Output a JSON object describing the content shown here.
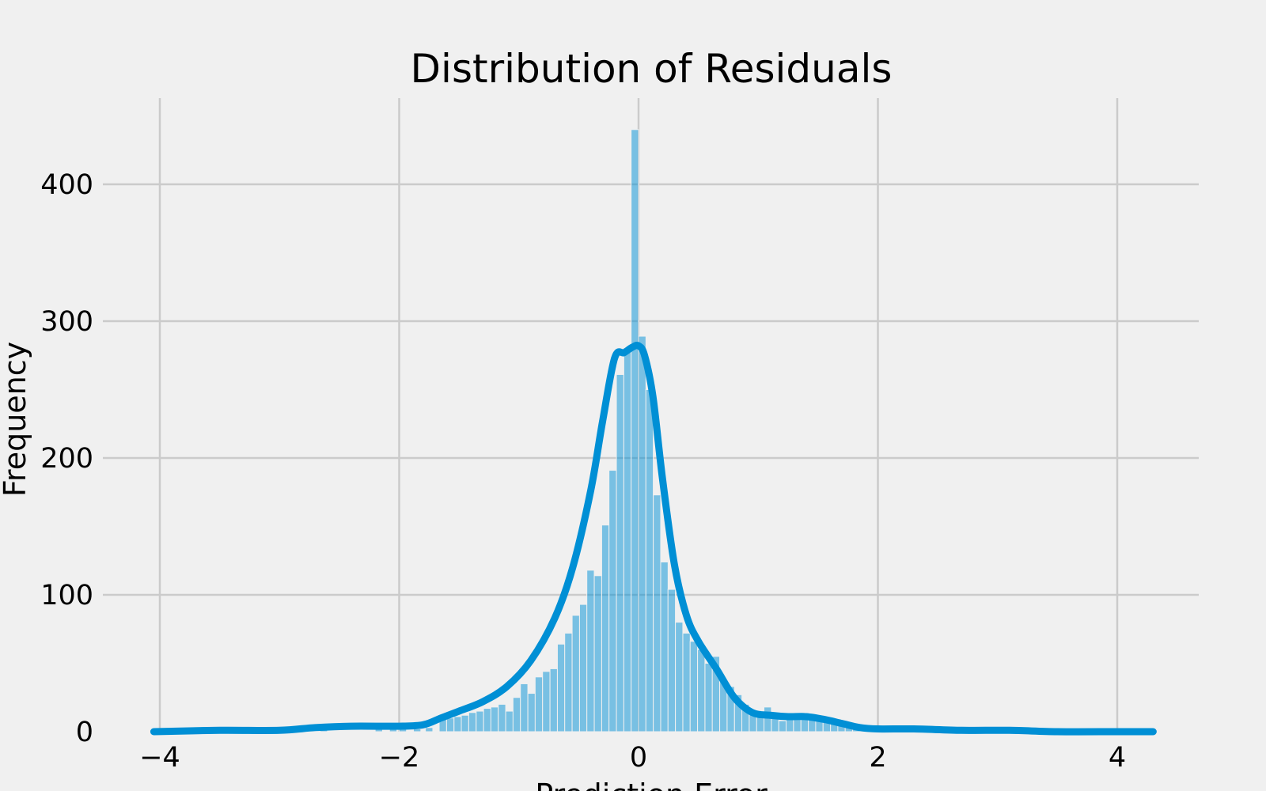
{
  "chart_data": {
    "type": "bar",
    "title": "Distribution of Residuals",
    "xlabel": "Prediction Error",
    "ylabel": "Frequency",
    "xlim": [
      -4.1,
      4.35
    ],
    "ylim": [
      0,
      460
    ],
    "xticks": [
      -4,
      -2,
      0,
      2,
      4
    ],
    "xtick_labels": [
      "−4",
      "−2",
      "0",
      "2",
      "4"
    ],
    "yticks": [
      0,
      100,
      200,
      300,
      400
    ],
    "ytick_labels": [
      "0",
      "100",
      "200",
      "300",
      "400"
    ],
    "grid": true,
    "bar_color": "#008fd5",
    "bar_opacity": 0.5,
    "kde_color": "#008fd5",
    "bin_width": 0.0617,
    "bins": [
      {
        "x": -2.63,
        "count": 4
      },
      {
        "x": -2.17,
        "count": 3
      },
      {
        "x": -2.05,
        "count": 2
      },
      {
        "x": -1.97,
        "count": 2
      },
      {
        "x": -1.85,
        "count": 2
      },
      {
        "x": -1.75,
        "count": 3
      },
      {
        "x": -1.635,
        "count": 12
      },
      {
        "x": -1.573,
        "count": 10
      },
      {
        "x": -1.511,
        "count": 11
      },
      {
        "x": -1.45,
        "count": 12
      },
      {
        "x": -1.388,
        "count": 14
      },
      {
        "x": -1.326,
        "count": 15
      },
      {
        "x": -1.264,
        "count": 17
      },
      {
        "x": -1.203,
        "count": 18
      },
      {
        "x": -1.141,
        "count": 20
      },
      {
        "x": -1.079,
        "count": 15
      },
      {
        "x": -1.018,
        "count": 25
      },
      {
        "x": -0.956,
        "count": 35
      },
      {
        "x": -0.894,
        "count": 28
      },
      {
        "x": -0.833,
        "count": 40
      },
      {
        "x": -0.771,
        "count": 44
      },
      {
        "x": -0.709,
        "count": 46
      },
      {
        "x": -0.647,
        "count": 64
      },
      {
        "x": -0.586,
        "count": 72
      },
      {
        "x": -0.524,
        "count": 85
      },
      {
        "x": -0.462,
        "count": 93
      },
      {
        "x": -0.401,
        "count": 118
      },
      {
        "x": -0.339,
        "count": 114
      },
      {
        "x": -0.277,
        "count": 151
      },
      {
        "x": -0.216,
        "count": 191
      },
      {
        "x": -0.154,
        "count": 261
      },
      {
        "x": -0.092,
        "count": 278
      },
      {
        "x": -0.031,
        "count": 440
      },
      {
        "x": 0.031,
        "count": 289
      },
      {
        "x": 0.092,
        "count": 250
      },
      {
        "x": 0.154,
        "count": 173
      },
      {
        "x": 0.216,
        "count": 124
      },
      {
        "x": 0.277,
        "count": 104
      },
      {
        "x": 0.339,
        "count": 80
      },
      {
        "x": 0.401,
        "count": 72
      },
      {
        "x": 0.462,
        "count": 66
      },
      {
        "x": 0.524,
        "count": 60
      },
      {
        "x": 0.586,
        "count": 50
      },
      {
        "x": 0.647,
        "count": 55
      },
      {
        "x": 0.709,
        "count": 38
      },
      {
        "x": 0.771,
        "count": 33
      },
      {
        "x": 0.833,
        "count": 27
      },
      {
        "x": 0.894,
        "count": 20
      },
      {
        "x": 0.956,
        "count": 16
      },
      {
        "x": 1.018,
        "count": 15
      },
      {
        "x": 1.079,
        "count": 18
      },
      {
        "x": 1.141,
        "count": 12
      },
      {
        "x": 1.203,
        "count": 8
      },
      {
        "x": 1.264,
        "count": 11
      },
      {
        "x": 1.326,
        "count": 10
      },
      {
        "x": 1.388,
        "count": 12
      },
      {
        "x": 1.45,
        "count": 11
      },
      {
        "x": 1.511,
        "count": 10
      },
      {
        "x": 1.573,
        "count": 9
      },
      {
        "x": 1.635,
        "count": 8
      },
      {
        "x": 1.696,
        "count": 7
      },
      {
        "x": 1.758,
        "count": 6
      },
      {
        "x": 1.82,
        "count": 4
      },
      {
        "x": 2.3,
        "count": 2
      },
      {
        "x": 2.9,
        "count": 1
      }
    ],
    "kde": {
      "x": [
        -4.05,
        -3.5,
        -3.0,
        -2.7,
        -2.4,
        -2.0,
        -1.8,
        -1.65,
        -1.5,
        -1.3,
        -1.1,
        -0.9,
        -0.7,
        -0.55,
        -0.4,
        -0.3,
        -0.2,
        -0.12,
        -0.05,
        0.0,
        0.05,
        0.12,
        0.2,
        0.3,
        0.4,
        0.5,
        0.65,
        0.8,
        0.95,
        1.1,
        1.25,
        1.4,
        1.55,
        1.7,
        1.85,
        2.0,
        2.3,
        2.7,
        3.1,
        3.5,
        4.0,
        4.3
      ],
      "y": [
        0,
        1,
        1,
        3,
        4,
        4,
        5,
        10,
        15,
        22,
        33,
        52,
        83,
        120,
        176,
        227,
        273,
        277,
        281,
        282,
        275,
        245,
        185,
        122,
        85,
        66,
        46,
        25,
        14,
        12,
        11,
        11,
        9,
        6,
        3,
        2,
        2,
        1,
        1,
        0,
        0,
        0
      ]
    }
  }
}
